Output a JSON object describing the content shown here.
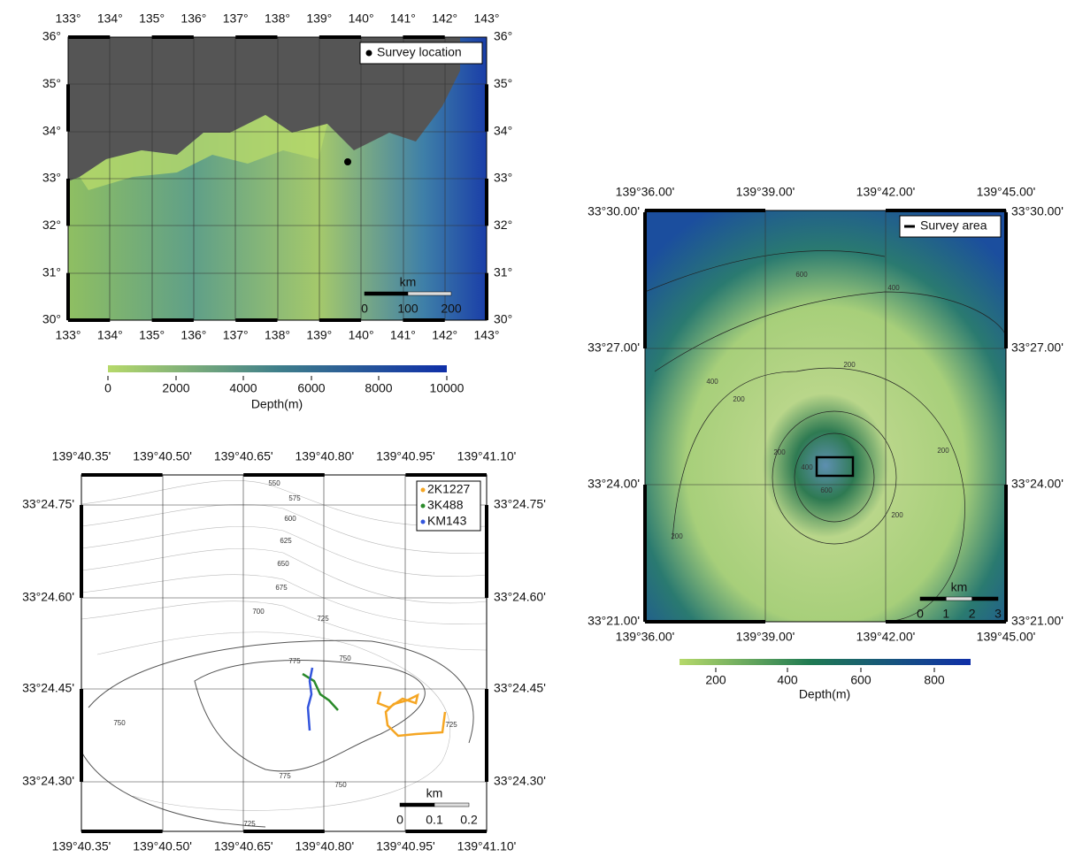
{
  "maps": [
    {
      "lon_labels": [
        "133°",
        "134°",
        "135°",
        "136°",
        "137°",
        "138°",
        "139°",
        "140°",
        "141°",
        "142°",
        "143°"
      ],
      "lat_labels": [
        "36°",
        "35°",
        "34°",
        "33°",
        "32°",
        "31°",
        "30°"
      ],
      "legend": "Survey location",
      "scale": {
        "unit": "km",
        "labels": [
          "0",
          "100",
          "200"
        ]
      },
      "colorbar": {
        "labels": [
          "0",
          "2000",
          "4000",
          "6000",
          "8000",
          "10000"
        ],
        "title": "Depth(m)"
      }
    },
    {
      "lon_labels": [
        "139°36.00'",
        "139°39.00'",
        "139°42.00'",
        "139°45.00'"
      ],
      "lat_labels": [
        "33°30.00'",
        "33°27.00'",
        "33°24.00'",
        "33°21.00'"
      ],
      "legend": "Survey area",
      "scale": {
        "unit": "km",
        "labels": [
          "0",
          "1",
          "2",
          "3"
        ]
      },
      "colorbar": {
        "labels": [
          "200",
          "400",
          "600",
          "800"
        ],
        "title": "Depth(m)"
      },
      "contour_labels": [
        "600",
        "400",
        "400",
        "200",
        "200",
        "200",
        "400",
        "600",
        "200",
        "200",
        "200"
      ]
    },
    {
      "lon_labels": [
        "139°40.35'",
        "139°40.50'",
        "139°40.65'",
        "139°40.80'",
        "139°40.95'",
        "139°41.10'"
      ],
      "lat_labels": [
        "33°24.75'",
        "33°24.60'",
        "33°24.45'",
        "33°24.30'"
      ],
      "legend": [
        "2K1227",
        "3K488",
        "KM143"
      ],
      "scale": {
        "unit": "km",
        "labels": [
          "0",
          "0.1",
          "0.2"
        ]
      },
      "contour_labels": [
        "550",
        "575",
        "600",
        "625",
        "650",
        "675",
        "700",
        "725",
        "775",
        "750",
        "750",
        "775",
        "750",
        "725",
        "725"
      ]
    }
  ]
}
